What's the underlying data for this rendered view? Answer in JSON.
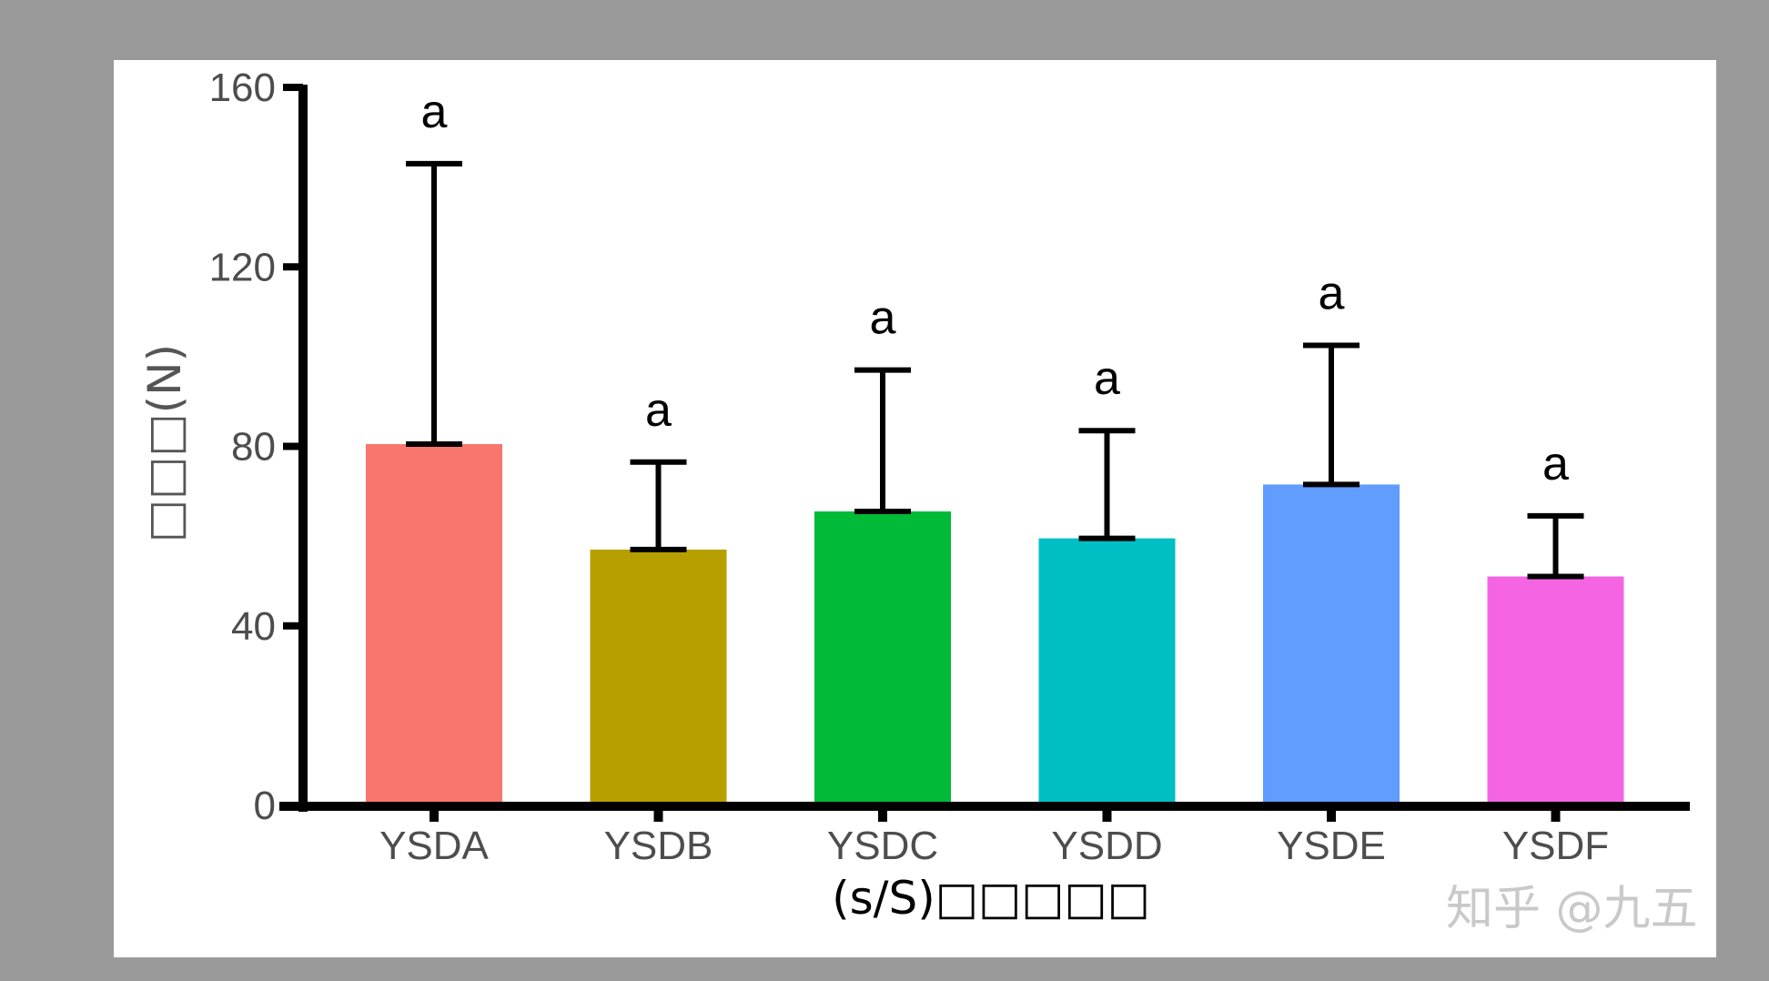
{
  "chart_data": {
    "type": "bar",
    "categories": [
      "YSDA",
      "YSDB",
      "YSDC",
      "YSDD",
      "YSDE",
      "YSDF"
    ],
    "values": [
      80.5,
      57,
      65.5,
      59.5,
      71.5,
      51
    ],
    "error_upper": [
      143,
      76.5,
      97,
      83.5,
      102.5,
      64.5
    ],
    "significance": [
      "a",
      "a",
      "a",
      "a",
      "a",
      "a"
    ],
    "bar_colors": [
      "#F8766D",
      "#B79F00",
      "#00BA38",
      "#00BFC4",
      "#619CFF",
      "#F564E3"
    ],
    "xlabel": "(s/S)□□□□□",
    "ylabel": "□□□(N)",
    "ylim": [
      0,
      160
    ],
    "yticks": [
      0,
      40,
      80,
      120,
      160
    ],
    "grid": false,
    "legend": "none"
  },
  "watermark": "知乎 @九五"
}
